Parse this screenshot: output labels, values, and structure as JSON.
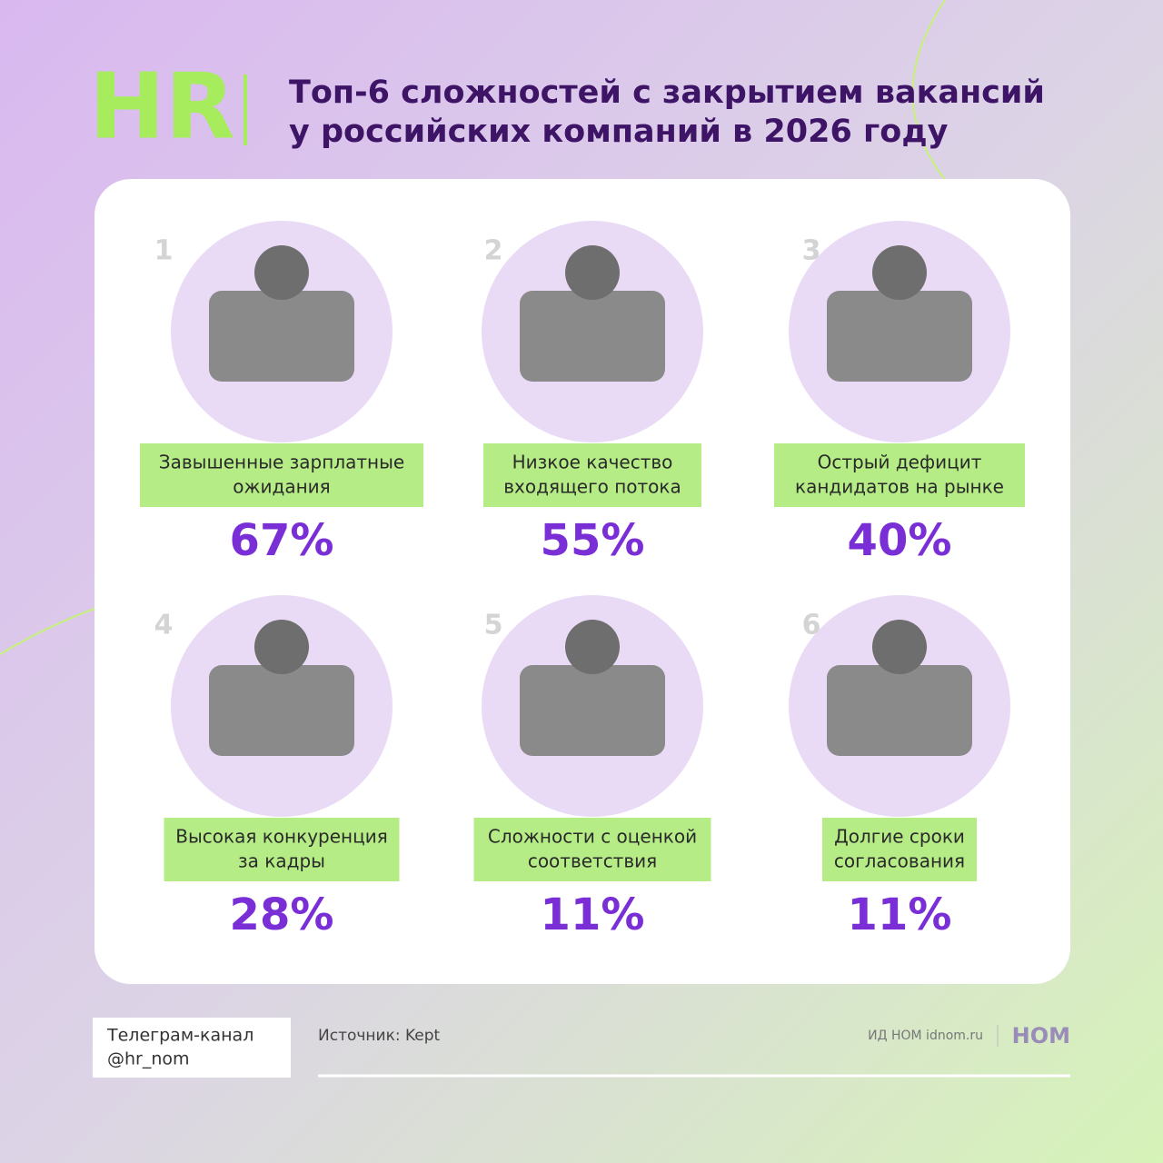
{
  "header": {
    "logo": "HR",
    "title_lines": [
      "Топ-6 сложностей с закрытием вакансий",
      "у российских компаний в 2026 году"
    ]
  },
  "items": [
    {
      "rank": 1,
      "label_lines": [
        "Завышенные зарплатные",
        "ожидания"
      ],
      "value": "67%"
    },
    {
      "rank": 2,
      "label_lines": [
        "Низкое качество",
        "входящего потока"
      ],
      "value": "55%"
    },
    {
      "rank": 3,
      "label_lines": [
        "Острый дефицит",
        "кандидатов на рынке"
      ],
      "value": "40%"
    },
    {
      "rank": 4,
      "label_lines": [
        "Высокая конкуренция",
        "за кадры"
      ],
      "value": "28%"
    },
    {
      "rank": 5,
      "label_lines": [
        "Сложности с оценкой",
        "соответствия"
      ],
      "value": "11%"
    },
    {
      "rank": 6,
      "label_lines": [
        "Долгие сроки",
        "согласования"
      ],
      "value": "11%"
    }
  ],
  "footer": {
    "channel_lines": [
      "Телеграм-канал",
      "@hr_nom"
    ],
    "source": "Источник: Kept",
    "publisher": "ИД НОМ idnom.ru",
    "brand": "НОМ"
  }
}
